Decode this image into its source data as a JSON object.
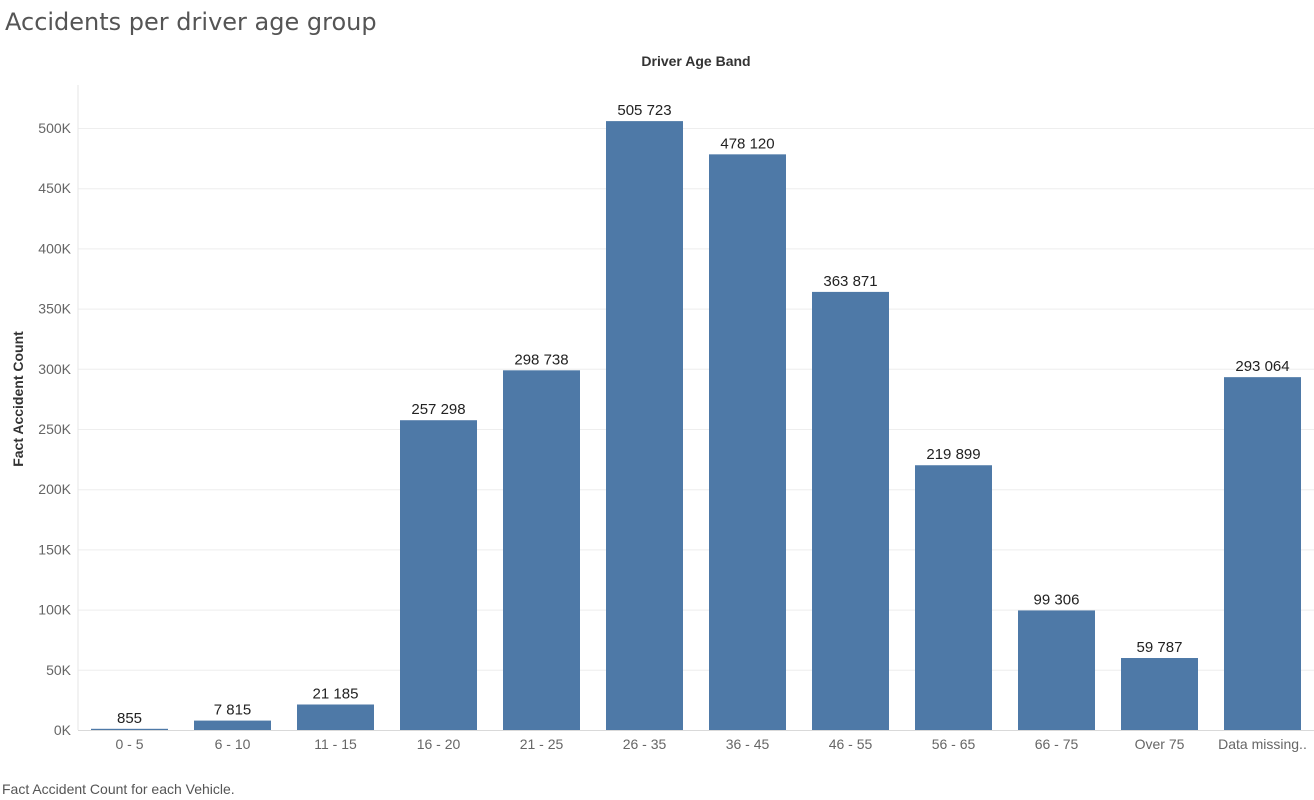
{
  "title": "Accidents per driver age group",
  "footer": "Fact Accident Count for each Vehicle.",
  "chart_data": {
    "type": "bar",
    "column_header": "Driver Age Band",
    "ylabel": "Fact Accident Count",
    "categories": [
      "0 - 5",
      "6 - 10",
      "11 - 15",
      "16 - 20",
      "21 - 25",
      "26 - 35",
      "36 - 45",
      "46 - 55",
      "56 - 65",
      "66 - 75",
      "Over 75",
      "Data missing.."
    ],
    "values": [
      855,
      7815,
      21185,
      257298,
      298738,
      505723,
      478120,
      363871,
      219899,
      99306,
      59787,
      293064
    ],
    "value_labels": [
      "855",
      "7 815",
      "21 185",
      "257 298",
      "298 738",
      "505 723",
      "478 120",
      "363 871",
      "219 899",
      "99 306",
      "59 787",
      "293 064"
    ],
    "ylim": [
      0,
      530000
    ],
    "y_ticks": [
      0,
      50000,
      100000,
      150000,
      200000,
      250000,
      300000,
      350000,
      400000,
      450000,
      500000
    ],
    "y_tick_labels": [
      "0K",
      "50K",
      "100K",
      "150K",
      "200K",
      "250K",
      "300K",
      "350K",
      "400K",
      "450K",
      "500K"
    ],
    "bar_color": "#4e79a7",
    "grid": true
  }
}
